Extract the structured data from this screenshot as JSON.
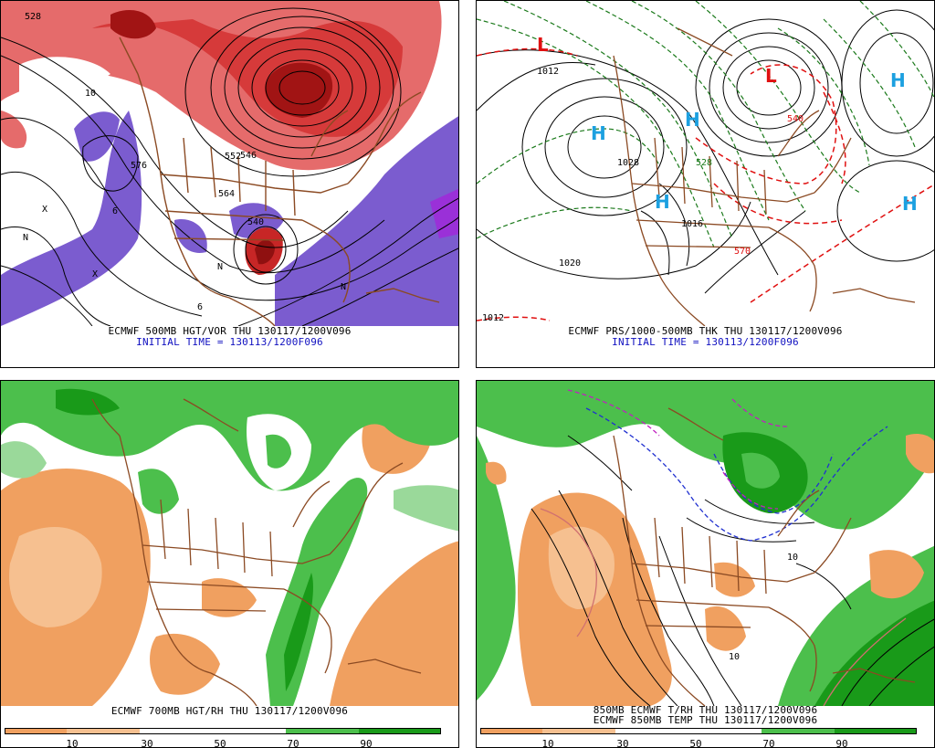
{
  "panels": {
    "top_left": {
      "caption": "ECMWF 500MB HGT/VOR THU 130117/1200V096",
      "subcaption": "INITIAL TIME = 130113/1200F096",
      "contour_labels": [
        "528",
        "576",
        "552",
        "546",
        "564",
        "540",
        "10",
        "6",
        "X",
        "N"
      ],
      "colors": {
        "vorticity_positive": "#d63a3a",
        "vorticity_strong": "#a11414",
        "vorticity_negative": "#7b5ccf",
        "land_borders": "#8b4a23"
      }
    },
    "top_right": {
      "caption": "ECMWF PRS/1000-500MB THK THU 130117/1200V096",
      "subcaption": "INITIAL TIME = 130113/1200F096",
      "pressure_labels": [
        "1012",
        "1020",
        "1028",
        "1016",
        "1012"
      ],
      "thickness_labels": [
        "570",
        "528",
        "540"
      ],
      "highs": [
        "H",
        "H",
        "H",
        "H",
        "H"
      ],
      "lows": [
        "L",
        "L"
      ],
      "colors": {
        "high_marker": "#1ca0e0",
        "low_marker": "#e01010",
        "thickness_cold": "#1b7a1b",
        "thickness_warm": "#e01010"
      }
    },
    "bottom_left": {
      "caption": "ECMWF 700MB HGT/RH THU 130117/1200V096",
      "colorbar_ticks": [
        "10",
        "30",
        "50",
        "70",
        "90"
      ],
      "colors": {
        "dry": "#f0a060",
        "dry_light": "#f6c090",
        "moist": "#4cbf4c",
        "moist_dark": "#199a19",
        "moist_light": "#9ad99a"
      }
    },
    "bottom_right": {
      "caption": "850MB ECMWF T/RH THU 130117/1200V096",
      "subcaption": "ECMWF 850MB TEMP THU 130117/1200V096",
      "contour_labels": [
        "10",
        "10"
      ],
      "colorbar_ticks": [
        "10",
        "30",
        "50",
        "70",
        "90"
      ],
      "colors": {
        "cold_isotherm": "#2030d0",
        "very_cold_isotherm": "#c020c0",
        "warm_isotherm": "#d07070"
      }
    }
  }
}
